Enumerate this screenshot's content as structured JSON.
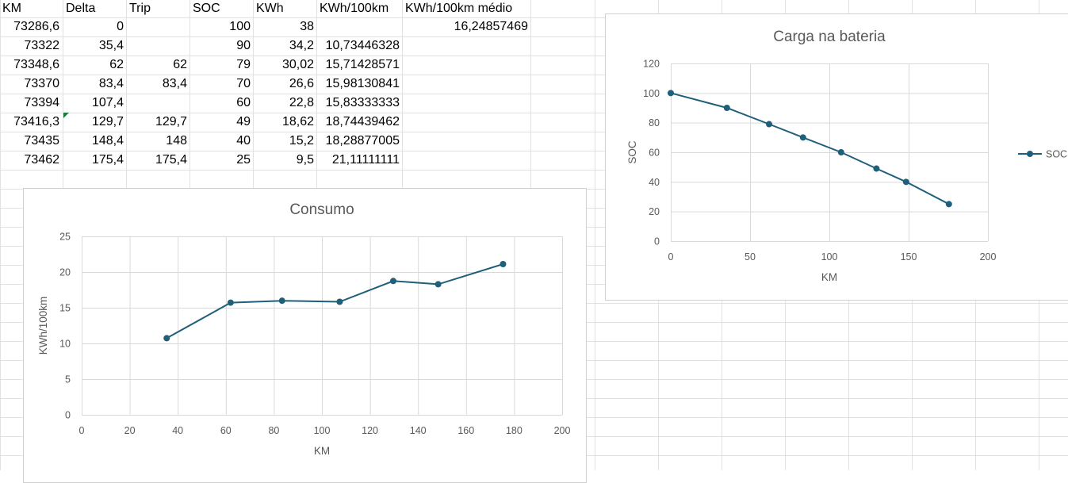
{
  "sheet": {
    "headers": [
      "KM",
      "Delta",
      "Trip",
      "SOC",
      "KWh",
      "KWh/100km",
      "KWh/100km médio"
    ],
    "rows": [
      [
        "73286,6",
        "0",
        "",
        "100",
        "38",
        "",
        "16,24857469"
      ],
      [
        "73322",
        "35,4",
        "",
        "90",
        "34,2",
        "10,73446328",
        ""
      ],
      [
        "73348,6",
        "62",
        "62",
        "79",
        "30,02",
        "15,71428571",
        ""
      ],
      [
        "73370",
        "83,4",
        "83,4",
        "70",
        "26,6",
        "15,98130841",
        ""
      ],
      [
        "73394",
        "107,4",
        "",
        "60",
        "22,8",
        "15,83333333",
        ""
      ],
      [
        "73416,3",
        "129,7",
        "129,7",
        "49",
        "18,62",
        "18,74439462",
        ""
      ],
      [
        "73435",
        "148,4",
        "148",
        "40",
        "15,2",
        "18,28877005",
        ""
      ],
      [
        "73462",
        "175,4",
        "175,4",
        "25",
        "9,5",
        "21,11111111",
        ""
      ]
    ]
  },
  "colors": {
    "series": "#1f5f7a",
    "gridline": "#d9d9d9",
    "cell_border": "#e1e1e1",
    "axis_text": "#595959",
    "error_indicator": "#1a7d3c"
  },
  "chart_data": [
    {
      "type": "line",
      "title": "Carga na bateria",
      "xlabel": "KM",
      "ylabel": "SOC",
      "xlim": [
        0,
        200
      ],
      "ylim": [
        0,
        120
      ],
      "xticks": [
        0,
        50,
        100,
        150,
        200
      ],
      "yticks": [
        0,
        20,
        40,
        60,
        80,
        100,
        120
      ],
      "grid": true,
      "legend": "right",
      "series": [
        {
          "name": "SOC",
          "x": [
            0,
            35.4,
            62,
            83.4,
            107.4,
            129.7,
            148.4,
            175.4
          ],
          "y": [
            100,
            90,
            79,
            70,
            60,
            49,
            40,
            25
          ]
        }
      ]
    },
    {
      "type": "line",
      "title": "Consumo",
      "xlabel": "KM",
      "ylabel": "KWh/100km",
      "xlim": [
        0,
        200
      ],
      "ylim": [
        0,
        25
      ],
      "xticks": [
        0,
        20,
        40,
        60,
        80,
        100,
        120,
        140,
        160,
        180,
        200
      ],
      "yticks": [
        0,
        5,
        10,
        15,
        20,
        25
      ],
      "grid": true,
      "legend": "none",
      "series": [
        {
          "x": [
            35.4,
            62,
            83.4,
            107.4,
            129.7,
            148.4,
            175.4
          ],
          "y": [
            10.73446328,
            15.71428571,
            15.98130841,
            15.83333333,
            18.74439462,
            18.28877005,
            21.11111111
          ]
        }
      ]
    }
  ]
}
